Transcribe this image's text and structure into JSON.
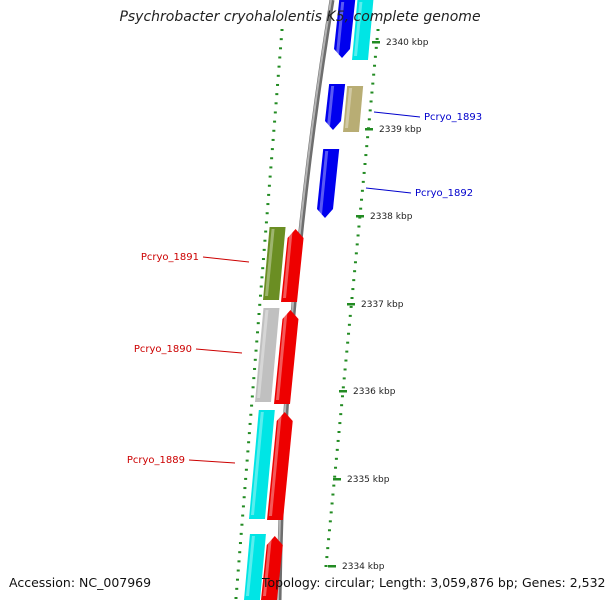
{
  "title": "Psychrobacter cryohalolentis K5, complete genome",
  "footer": {
    "accession_label": "Accession:",
    "accession": "NC_007969",
    "topology_label": "Topology:",
    "topology": "circular",
    "length_label": "Length:",
    "length": "3,059,876 bp",
    "genes_label": "Genes:",
    "genes": "2,532"
  },
  "ticks": [
    "2340 kbp",
    "2339 kbp",
    "2338 kbp",
    "2337 kbp",
    "2336 kbp",
    "2335 kbp",
    "2334 kbp"
  ],
  "gene_labels": [
    {
      "text": "Pcryo_1893",
      "strand": "forward",
      "color": "#0000cc"
    },
    {
      "text": "Pcryo_1892",
      "strand": "forward",
      "color": "#0000cc"
    },
    {
      "text": "Pcryo_1891",
      "strand": "reverse",
      "color": "#cc0000"
    },
    {
      "text": "Pcryo_1890",
      "strand": "reverse",
      "color": "#cc0000"
    },
    {
      "text": "Pcryo_1889",
      "strand": "reverse",
      "color": "#cc0000"
    }
  ],
  "colors": {
    "backbone": "#8a8a8a",
    "tick_marks": "#228b22",
    "forward_cds": "#0000ee",
    "reverse_cds": "#ee0000",
    "cog_cyan": "#00e5e5",
    "cog_khaki": "#b8ad74",
    "cog_olive": "#6b8e23",
    "cog_gray": "#c0c0c0"
  }
}
